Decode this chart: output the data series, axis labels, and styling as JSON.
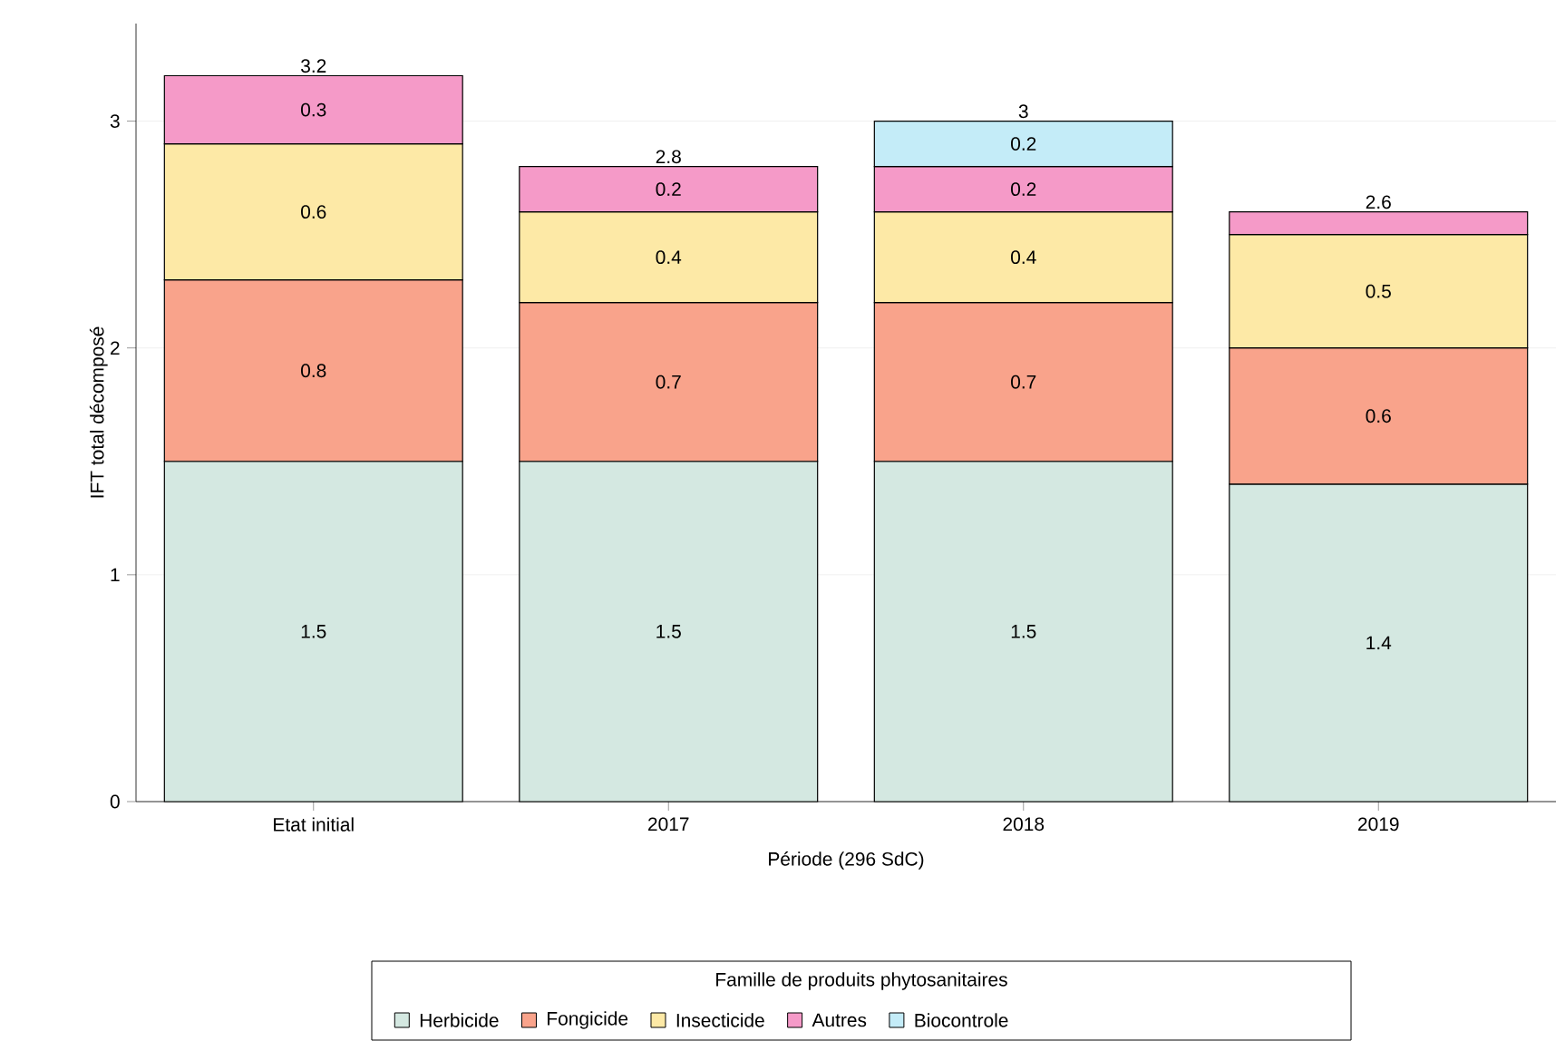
{
  "chart_data": {
    "type": "bar",
    "stacked": true,
    "xlabel": "Période (296 SdC)",
    "ylabel": "IFT total décomposé",
    "legend_title": "Famille de produits phytosanitaires",
    "legend": "bottom",
    "grid": "y",
    "categories": [
      "Etat initial",
      "2017",
      "2018",
      "2019"
    ],
    "ylim": [
      0,
      3.43
    ],
    "yticks": [
      0,
      1,
      2,
      3
    ],
    "series": [
      {
        "name": "Herbicide",
        "color": "#d4e8e1",
        "values": [
          1.5,
          1.5,
          1.5,
          1.4
        ],
        "value_labels": [
          "1.5",
          "1.5",
          "1.5",
          "1.4"
        ]
      },
      {
        "name": "Fongicide",
        "color": "#f9a38b",
        "values": [
          0.8,
          0.7,
          0.7,
          0.6
        ],
        "value_labels": [
          "0.8",
          "0.7",
          "0.7",
          "0.6"
        ]
      },
      {
        "name": "Insecticide",
        "color": "#fde9a6",
        "values": [
          0.6,
          0.4,
          0.4,
          0.5
        ],
        "value_labels": [
          "0.6",
          "0.4",
          "0.4",
          "0.5"
        ]
      },
      {
        "name": "Autres",
        "color": "#f59ac8",
        "values": [
          0.3,
          0.2,
          0.2,
          0.1
        ],
        "value_labels": [
          "0.3",
          "0.2",
          "0.2",
          null
        ]
      },
      {
        "name": "Biocontrole",
        "color": "#c4ecf8",
        "values": [
          null,
          null,
          0.2,
          null
        ],
        "value_labels": [
          null,
          null,
          "0.2",
          null
        ]
      }
    ],
    "totals": [
      "3.2",
      "2.8",
      "3",
      "2.6"
    ]
  }
}
